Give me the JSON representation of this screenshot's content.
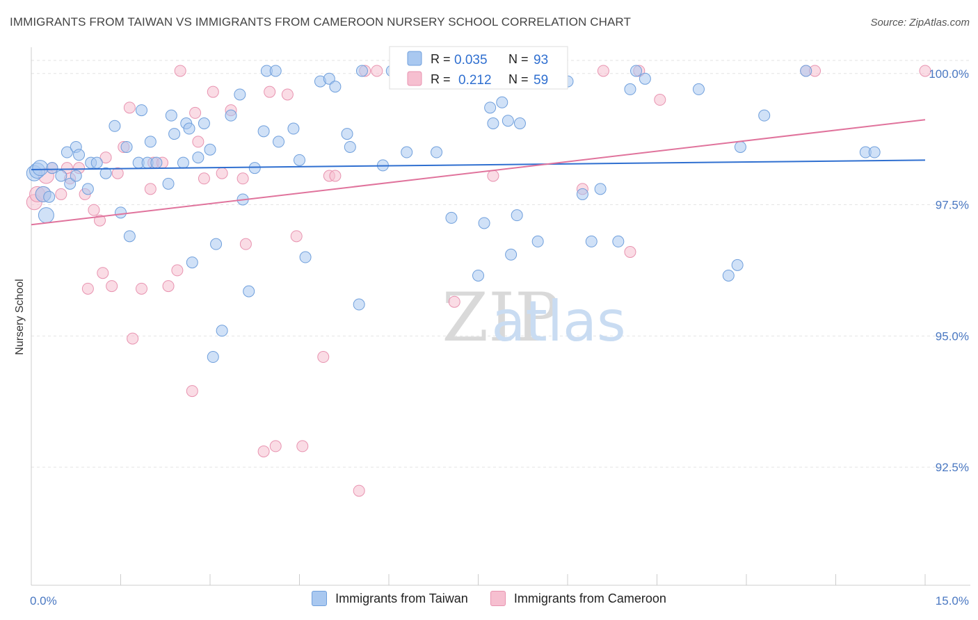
{
  "header": {
    "title": "IMMIGRANTS FROM TAIWAN VS IMMIGRANTS FROM CAMEROON NURSERY SCHOOL CORRELATION CHART",
    "source": "Source: ZipAtlas.com"
  },
  "watermark": {
    "zip": "ZIP",
    "atlas": "atlas"
  },
  "legend": {
    "taiwan": {
      "r_label": "R =",
      "r_value": "0.035",
      "n_label": "N =",
      "n_value": "93"
    },
    "cameroon": {
      "r_label": "R =",
      "r_value": "0.212",
      "n_label": "N =",
      "n_value": "59"
    }
  },
  "colors": {
    "taiwan_fill": "#a9c8f0",
    "taiwan_stroke": "#6f9fdc",
    "taiwan_line": "#2f6fd0",
    "cameroon_fill": "#f6bfd0",
    "cameroon_stroke": "#e893b0",
    "cameroon_line": "#e0739c",
    "axis_text": "#4a78c2",
    "grid": "#e4e4e4"
  },
  "chart_data": {
    "type": "scatter",
    "title": "IMMIGRANTS FROM TAIWAN VS IMMIGRANTS FROM CAMEROON NURSERY SCHOOL CORRELATION CHART",
    "xlabel": "",
    "ylabel": "Nursery School",
    "xlim": [
      0,
      15
    ],
    "ylim": [
      90.25,
      100.5
    ],
    "x_tick_labels": [
      "0.0%",
      "15.0%"
    ],
    "y_ticks": [
      92.5,
      95.0,
      97.5,
      100.0
    ],
    "y_tick_labels": [
      "92.5%",
      "95.0%",
      "97.5%",
      "100.0%"
    ],
    "grid": true,
    "legend_position": "top-center",
    "series": [
      {
        "name": "Immigrants from Taiwan",
        "color": "#a9c8f0",
        "R": 0.035,
        "N": 93,
        "trend": [
          [
            0,
            98.17
          ],
          [
            15,
            98.35
          ]
        ],
        "points": [
          [
            0.05,
            98.1
          ],
          [
            0.1,
            98.15
          ],
          [
            0.15,
            98.2
          ],
          [
            0.2,
            97.7
          ],
          [
            0.25,
            97.3
          ],
          [
            0.35,
            98.2
          ],
          [
            0.5,
            98.05
          ],
          [
            0.6,
            98.5
          ],
          [
            0.65,
            97.9
          ],
          [
            0.75,
            98.6
          ],
          [
            0.8,
            98.45
          ],
          [
            0.95,
            97.8
          ],
          [
            1.0,
            98.3
          ],
          [
            1.1,
            98.3
          ],
          [
            1.25,
            98.1
          ],
          [
            1.4,
            99.0
          ],
          [
            1.5,
            97.35
          ],
          [
            1.6,
            98.6
          ],
          [
            1.65,
            96.9
          ],
          [
            1.8,
            98.3
          ],
          [
            1.85,
            99.3
          ],
          [
            1.95,
            98.3
          ],
          [
            2.0,
            98.7
          ],
          [
            2.1,
            98.3
          ],
          [
            2.3,
            97.9
          ],
          [
            2.35,
            99.2
          ],
          [
            2.4,
            98.85
          ],
          [
            2.55,
            98.3
          ],
          [
            2.6,
            99.05
          ],
          [
            2.7,
            96.4
          ],
          [
            2.8,
            98.4
          ],
          [
            2.9,
            99.05
          ],
          [
            3.0,
            98.55
          ],
          [
            3.05,
            94.6
          ],
          [
            3.1,
            96.75
          ],
          [
            3.2,
            95.1
          ],
          [
            3.35,
            99.2
          ],
          [
            3.5,
            99.6
          ],
          [
            3.55,
            97.6
          ],
          [
            3.65,
            95.85
          ],
          [
            3.75,
            98.2
          ],
          [
            3.9,
            98.9
          ],
          [
            3.95,
            100.05
          ],
          [
            4.1,
            100.05
          ],
          [
            4.15,
            98.7
          ],
          [
            4.4,
            98.95
          ],
          [
            4.5,
            98.35
          ],
          [
            4.6,
            96.5
          ],
          [
            4.85,
            99.85
          ],
          [
            5.0,
            99.9
          ],
          [
            5.1,
            99.75
          ],
          [
            5.3,
            98.85
          ],
          [
            5.35,
            98.6
          ],
          [
            5.5,
            95.6
          ],
          [
            5.55,
            100.05
          ],
          [
            5.9,
            98.25
          ],
          [
            6.05,
            100.05
          ],
          [
            6.3,
            98.5
          ],
          [
            6.4,
            100.05
          ],
          [
            6.8,
            98.5
          ],
          [
            7.05,
            97.25
          ],
          [
            7.2,
            100.05
          ],
          [
            7.5,
            96.15
          ],
          [
            7.6,
            97.15
          ],
          [
            7.7,
            99.35
          ],
          [
            7.75,
            99.05
          ],
          [
            7.9,
            99.45
          ],
          [
            8.0,
            99.1
          ],
          [
            8.05,
            96.55
          ],
          [
            8.15,
            97.3
          ],
          [
            8.2,
            99.05
          ],
          [
            8.5,
            96.8
          ],
          [
            8.65,
            100.05
          ],
          [
            9.25,
            97.7
          ],
          [
            9.4,
            96.8
          ],
          [
            9.55,
            97.8
          ],
          [
            9.85,
            96.8
          ],
          [
            10.05,
            99.7
          ],
          [
            10.15,
            100.05
          ],
          [
            10.3,
            99.9
          ],
          [
            11.7,
            96.15
          ],
          [
            11.85,
            96.35
          ],
          [
            11.2,
            99.7
          ],
          [
            11.9,
            98.6
          ],
          [
            12.3,
            99.2
          ],
          [
            13.0,
            100.05
          ],
          [
            14.0,
            98.5
          ],
          [
            14.15,
            98.5
          ],
          [
            9.0,
            99.85
          ],
          [
            2.65,
            98.95
          ],
          [
            6.15,
            99.85
          ],
          [
            0.3,
            97.65
          ],
          [
            0.75,
            98.05
          ]
        ]
      },
      {
        "name": "Immigrants from Cameroon",
        "color": "#f6bfd0",
        "R": 0.212,
        "N": 59,
        "trend": [
          [
            0,
            97.12
          ],
          [
            15,
            99.12
          ]
        ],
        "points": [
          [
            0.05,
            97.55
          ],
          [
            0.1,
            97.7
          ],
          [
            0.2,
            97.7
          ],
          [
            0.25,
            98.05
          ],
          [
            0.35,
            98.2
          ],
          [
            0.5,
            97.7
          ],
          [
            0.6,
            98.2
          ],
          [
            0.65,
            98.0
          ],
          [
            0.8,
            98.2
          ],
          [
            0.9,
            97.7
          ],
          [
            0.95,
            95.9
          ],
          [
            1.05,
            97.4
          ],
          [
            1.15,
            97.2
          ],
          [
            1.2,
            96.2
          ],
          [
            1.25,
            98.4
          ],
          [
            1.35,
            95.95
          ],
          [
            1.45,
            98.1
          ],
          [
            1.55,
            98.6
          ],
          [
            1.65,
            99.35
          ],
          [
            1.7,
            94.95
          ],
          [
            1.85,
            95.9
          ],
          [
            2.0,
            97.8
          ],
          [
            2.05,
            98.3
          ],
          [
            2.2,
            98.3
          ],
          [
            2.3,
            95.95
          ],
          [
            2.45,
            96.25
          ],
          [
            2.5,
            100.05
          ],
          [
            2.7,
            93.95
          ],
          [
            2.75,
            99.25
          ],
          [
            2.8,
            98.7
          ],
          [
            2.9,
            98.0
          ],
          [
            3.05,
            99.65
          ],
          [
            3.2,
            98.1
          ],
          [
            3.35,
            99.3
          ],
          [
            3.55,
            98.0
          ],
          [
            3.6,
            96.75
          ],
          [
            3.9,
            92.8
          ],
          [
            4.0,
            99.65
          ],
          [
            4.1,
            92.9
          ],
          [
            4.3,
            99.6
          ],
          [
            4.45,
            96.9
          ],
          [
            4.55,
            92.9
          ],
          [
            4.9,
            94.6
          ],
          [
            5.0,
            98.05
          ],
          [
            5.1,
            98.05
          ],
          [
            5.5,
            92.05
          ],
          [
            5.6,
            100.05
          ],
          [
            5.8,
            100.05
          ],
          [
            7.1,
            95.65
          ],
          [
            7.4,
            100.05
          ],
          [
            7.75,
            98.05
          ],
          [
            9.25,
            97.8
          ],
          [
            9.6,
            100.05
          ],
          [
            10.05,
            96.6
          ],
          [
            10.2,
            100.05
          ],
          [
            10.55,
            99.5
          ],
          [
            13.0,
            100.05
          ],
          [
            13.15,
            100.05
          ],
          [
            15.0,
            100.05
          ]
        ]
      }
    ]
  },
  "bottom_legend": {
    "taiwan_label": "Immigrants from Taiwan",
    "cameroon_label": "Immigrants from Cameroon"
  }
}
